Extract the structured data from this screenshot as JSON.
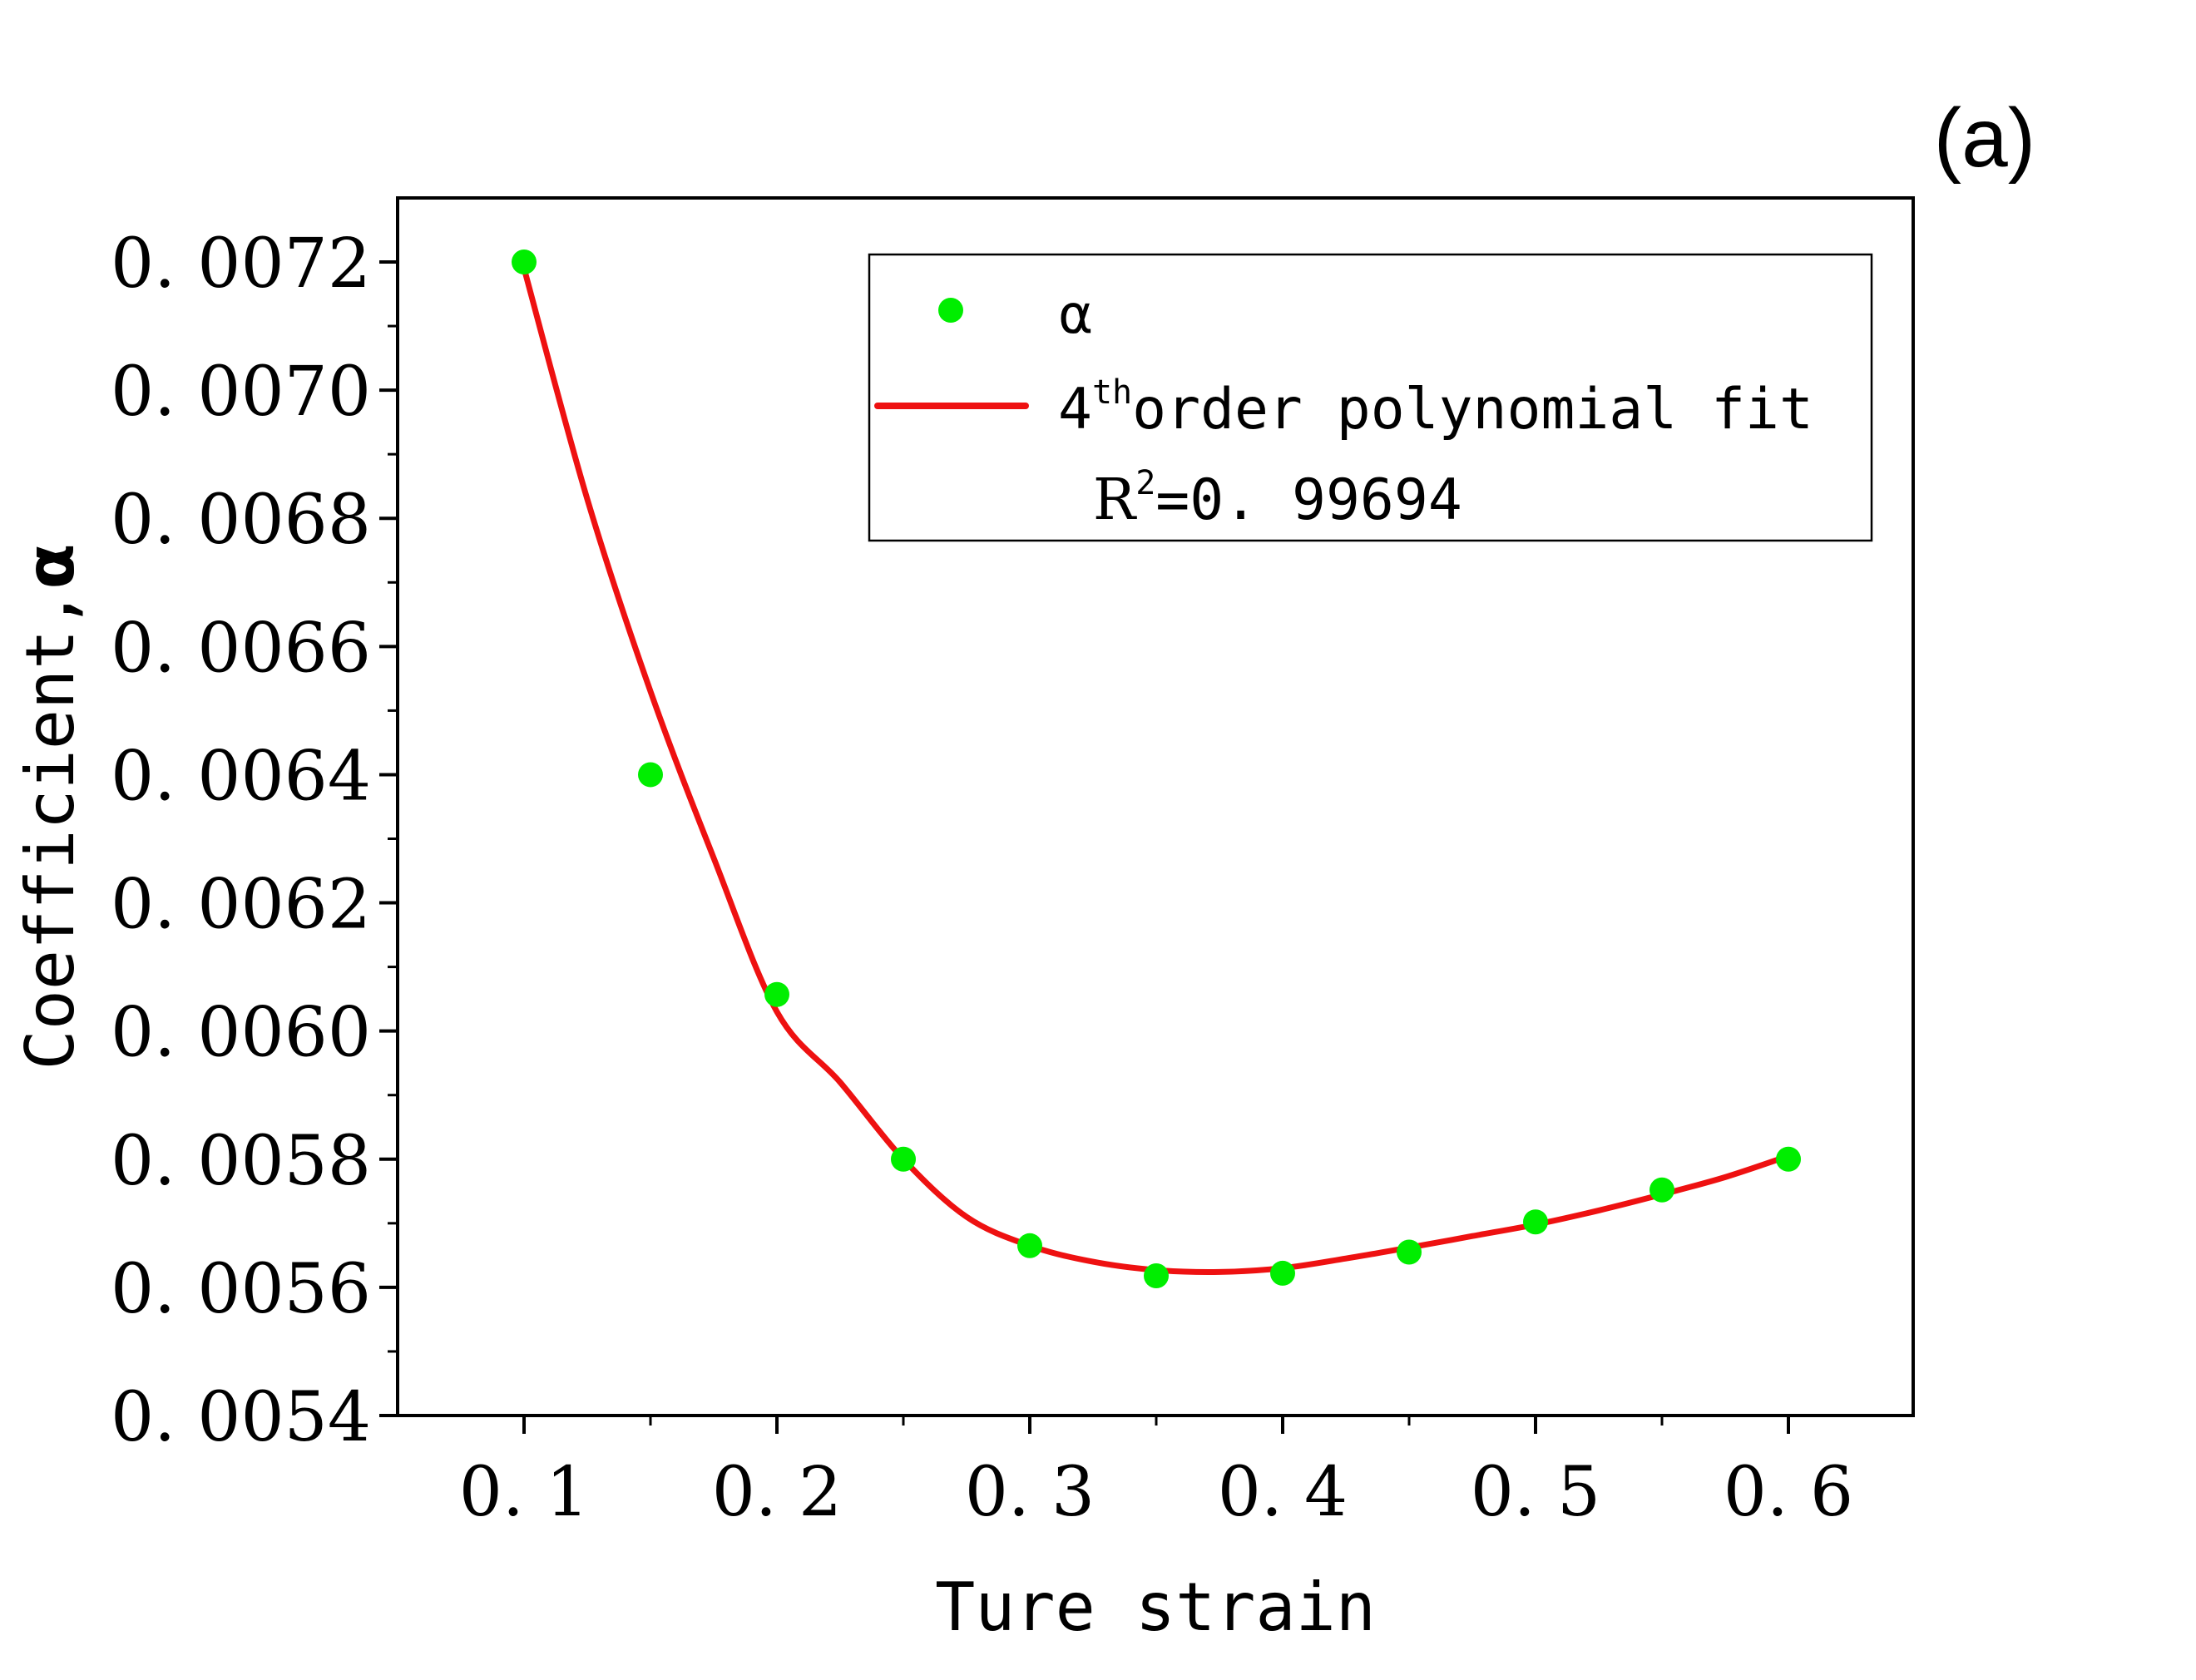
{
  "chart_data": {
    "type": "scatter",
    "panel_label": "(a)",
    "xlabel": "Ture strain",
    "ylabel_prefix": "Coefficient,",
    "ylabel_symbol": "α",
    "xlim": [
      0.05,
      0.65
    ],
    "ylim": [
      0.0054,
      0.0073
    ],
    "x_ticks": [
      0.1,
      0.2,
      0.3,
      0.4,
      0.5,
      0.6
    ],
    "x_tick_labels": [
      "0. 1",
      "0. 2",
      "0. 3",
      "0. 4",
      "0. 5",
      "0. 6"
    ],
    "y_ticks": [
      0.0054,
      0.0056,
      0.0058,
      0.006,
      0.0062,
      0.0064,
      0.0066,
      0.0068,
      0.007,
      0.0072
    ],
    "y_tick_labels": [
      "0. 0054",
      "0. 0056",
      "0. 0058",
      "0. 0060",
      "0. 0062",
      "0. 0064",
      "0. 0066",
      "0. 0068",
      "0. 0070",
      "0. 0072"
    ],
    "grid": false,
    "legend_position": "top-right",
    "series": [
      {
        "name": "α",
        "kind": "scatter",
        "color": "#00ee00",
        "x": [
          0.1,
          0.15,
          0.2,
          0.25,
          0.3,
          0.35,
          0.4,
          0.45,
          0.5,
          0.55,
          0.6
        ],
        "y": [
          0.0072,
          0.0064,
          0.006057,
          0.0058,
          0.005665,
          0.005618,
          0.005622,
          0.005655,
          0.005702,
          0.005752,
          0.0058
        ]
      },
      {
        "name": "4thorder polynomial fit",
        "kind": "line",
        "color": "#ee1111",
        "x": [
          0.1,
          0.125,
          0.15,
          0.175,
          0.2,
          0.225,
          0.25,
          0.275,
          0.3,
          0.325,
          0.35,
          0.375,
          0.4,
          0.425,
          0.45,
          0.475,
          0.5,
          0.525,
          0.55,
          0.575,
          0.6
        ],
        "y": [
          0.00719,
          0.00683,
          0.00653,
          0.00627,
          0.00603,
          0.00592,
          0.0058,
          0.00571,
          0.005665,
          0.00564,
          0.005627,
          0.005624,
          0.00563,
          0.005645,
          0.005662,
          0.00568,
          0.005698,
          0.00572,
          0.005745,
          0.005772,
          0.005805
        ]
      }
    ],
    "legend": {
      "scatter_label": "α",
      "fit_base": "4",
      "fit_sup": "th",
      "fit_rest": "order polynomial fit",
      "r2_prefix": "R",
      "r2_sup": "2",
      "r2_value": "=0. 99694"
    }
  }
}
